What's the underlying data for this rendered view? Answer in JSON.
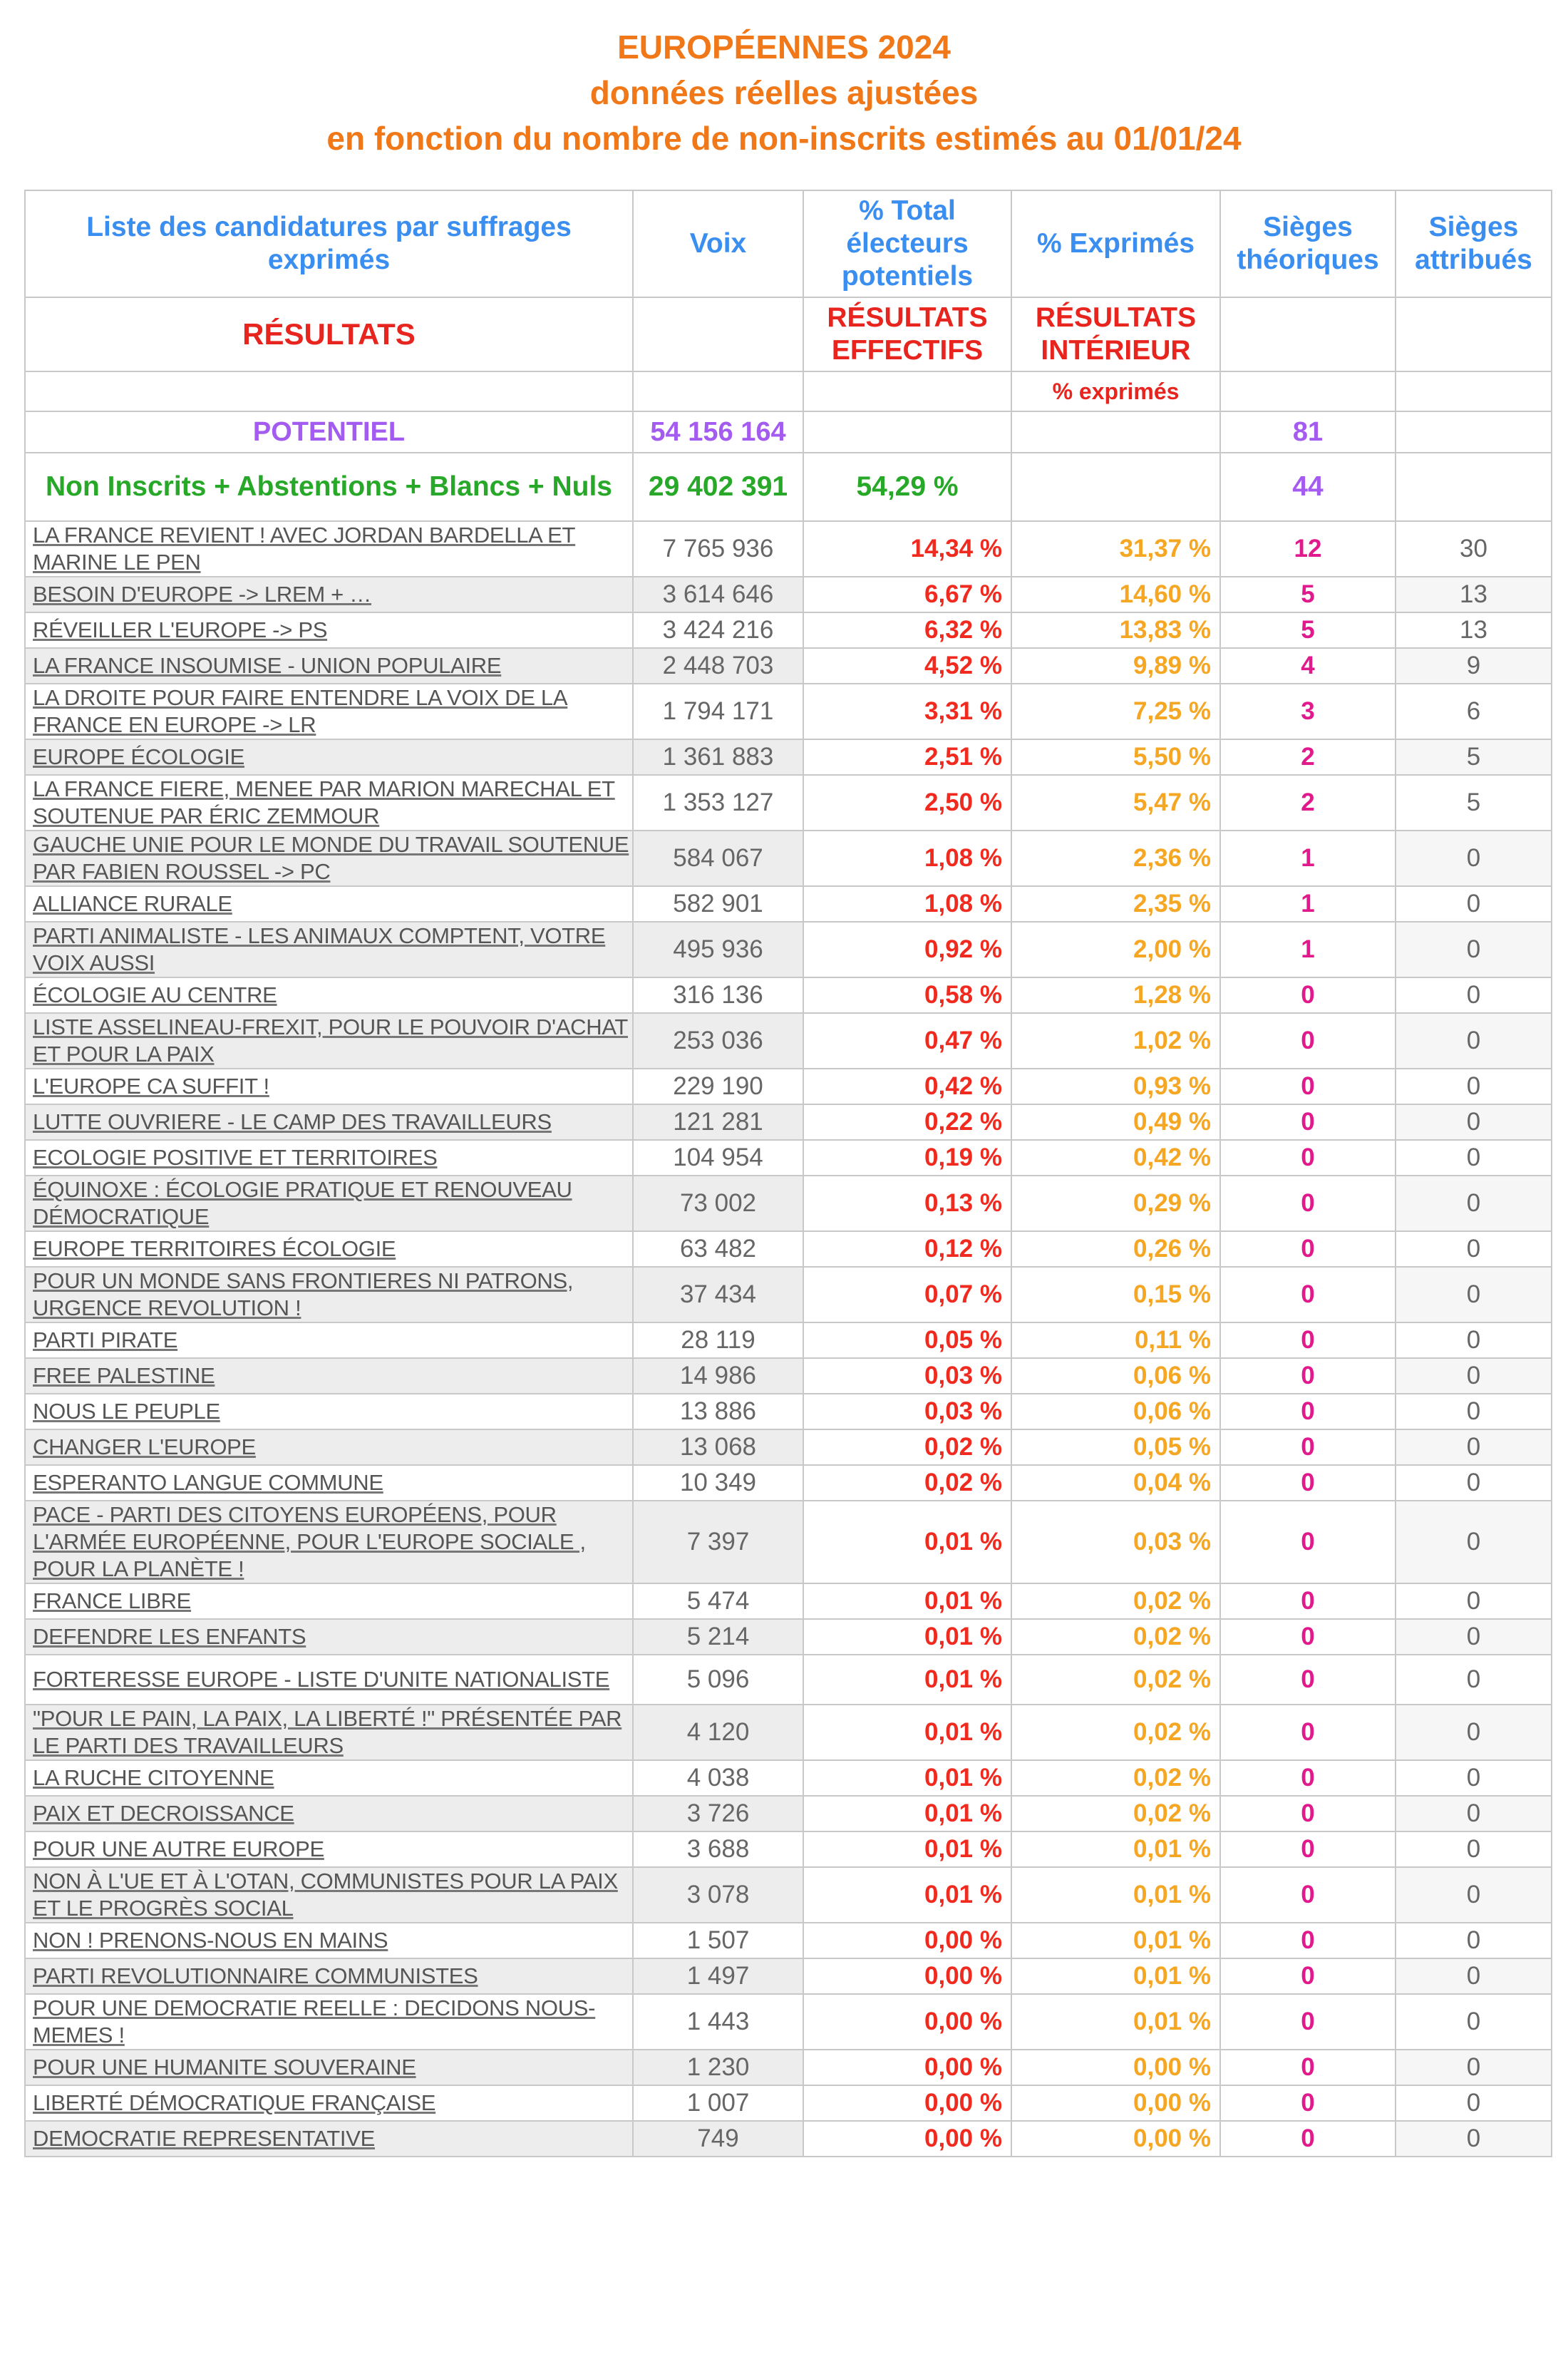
{
  "title": {
    "line1": "EUROPÉENNES 2024",
    "line2": "données réelles ajustées",
    "line3": "en fonction du nombre de non-inscrits estimés au 01/01/24"
  },
  "headers": {
    "liste": "Liste des candidatures par suffrages exprimés",
    "voix": "Voix",
    "total": "% Total électeurs potentiels",
    "exprimes": "% Exprimés",
    "sieges_theo": "Sièges théoriques",
    "sieges_attr": "Sièges attribués"
  },
  "sub": {
    "resultats": "RÉSULTATS",
    "effectifs": "RÉSULTATS EFFECTIFS",
    "interieur": "RÉSULTATS INTÉRIEUR",
    "pct_exprimes": "% exprimés"
  },
  "potentiel": {
    "label": "POTENTIEL",
    "voix": "54 156 164",
    "sieges": "81"
  },
  "non_inscrits": {
    "label": "Non Inscrits + Abstentions + Blancs + Nuls",
    "voix": "29 402 391",
    "pct": "54,29 %",
    "sieges": "44"
  },
  "colors": {
    "title": "#f07818",
    "header": "#3a8ef0",
    "red": "#e8241e",
    "purple": "#a45cf0",
    "green": "#28a828",
    "orange": "#f5a623",
    "magenta": "#e01a8c"
  },
  "rows": [
    {
      "name": "LA FRANCE REVIENT ! AVEC JORDAN BARDELLA ET MARINE LE PEN",
      "voix": "7 765 936",
      "pct": "14,34 %",
      "exp": "31,37 %",
      "st": "12",
      "sa": "30"
    },
    {
      "name": "BESOIN D'EUROPE -> LREM + …",
      "voix": "3 614 646",
      "pct": "6,67 %",
      "exp": "14,60 %",
      "st": "5",
      "sa": "13"
    },
    {
      "name": "RÉVEILLER L'EUROPE -> PS",
      "voix": "3 424 216",
      "pct": "6,32 %",
      "exp": "13,83 %",
      "st": "5",
      "sa": "13"
    },
    {
      "name": "LA FRANCE INSOUMISE - UNION POPULAIRE",
      "voix": "2 448 703",
      "pct": "4,52 %",
      "exp": "9,89 %",
      "st": "4",
      "sa": "9"
    },
    {
      "name": "LA DROITE POUR FAIRE ENTENDRE LA VOIX DE LA FRANCE EN EUROPE -> LR",
      "voix": "1 794 171",
      "pct": "3,31 %",
      "exp": "7,25 %",
      "st": "3",
      "sa": "6"
    },
    {
      "name": "EUROPE ÉCOLOGIE",
      "voix": "1 361 883",
      "pct": "2,51 %",
      "exp": "5,50 %",
      "st": "2",
      "sa": "5"
    },
    {
      "name": "LA FRANCE FIERE, MENEE PAR MARION MARECHAL ET SOUTENUE PAR ÉRIC ZEMMOUR",
      "voix": "1 353 127",
      "pct": "2,50 %",
      "exp": "5,47 %",
      "st": "2",
      "sa": "5"
    },
    {
      "name": "GAUCHE UNIE POUR LE MONDE DU TRAVAIL SOUTENUE PAR FABIEN ROUSSEL -> PC",
      "voix": "584 067",
      "pct": "1,08 %",
      "exp": "2,36 %",
      "st": "1",
      "sa": "0"
    },
    {
      "name": "ALLIANCE RURALE",
      "voix": "582 901",
      "pct": "1,08 %",
      "exp": "2,35 %",
      "st": "1",
      "sa": "0"
    },
    {
      "name": "PARTI ANIMALISTE - LES ANIMAUX COMPTENT, VOTRE VOIX AUSSI",
      "voix": "495 936",
      "pct": "0,92 %",
      "exp": "2,00 %",
      "st": "1",
      "sa": "0"
    },
    {
      "name": "ÉCOLOGIE AU CENTRE",
      "voix": "316 136",
      "pct": "0,58 %",
      "exp": "1,28 %",
      "st": "0",
      "sa": "0"
    },
    {
      "name": "LISTE ASSELINEAU-FREXIT, POUR LE POUVOIR D'ACHAT ET POUR LA PAIX",
      "voix": "253 036",
      "pct": "0,47 %",
      "exp": "1,02 %",
      "st": "0",
      "sa": "0"
    },
    {
      "name": "L'EUROPE CA SUFFIT !",
      "voix": "229 190",
      "pct": "0,42 %",
      "exp": "0,93 %",
      "st": "0",
      "sa": "0"
    },
    {
      "name": "LUTTE OUVRIERE - LE CAMP DES TRAVAILLEURS",
      "voix": "121 281",
      "pct": "0,22 %",
      "exp": "0,49 %",
      "st": "0",
      "sa": "0"
    },
    {
      "name": "ECOLOGIE POSITIVE ET TERRITOIRES",
      "voix": "104 954",
      "pct": "0,19 %",
      "exp": "0,42 %",
      "st": "0",
      "sa": "0"
    },
    {
      "name": "ÉQUINOXE : ÉCOLOGIE PRATIQUE ET RENOUVEAU DÉMOCRATIQUE",
      "voix": "73 002",
      "pct": "0,13 %",
      "exp": "0,29 %",
      "st": "0",
      "sa": "0"
    },
    {
      "name": "EUROPE TERRITOIRES ÉCOLOGIE",
      "voix": "63 482",
      "pct": "0,12 %",
      "exp": "0,26 %",
      "st": "0",
      "sa": "0"
    },
    {
      "name": "POUR UN MONDE SANS FRONTIERES NI PATRONS, URGENCE REVOLUTION !",
      "voix": "37 434",
      "pct": "0,07 %",
      "exp": "0,15 %",
      "st": "0",
      "sa": "0"
    },
    {
      "name": "PARTI PIRATE",
      "voix": "28 119",
      "pct": "0,05 %",
      "exp": "0,11 %",
      "st": "0",
      "sa": "0"
    },
    {
      "name": "FREE PALESTINE",
      "voix": "14 986",
      "pct": "0,03 %",
      "exp": "0,06 %",
      "st": "0",
      "sa": "0"
    },
    {
      "name": "NOUS LE PEUPLE",
      "voix": "13 886",
      "pct": "0,03 %",
      "exp": "0,06 %",
      "st": "0",
      "sa": "0"
    },
    {
      "name": "CHANGER L'EUROPE",
      "voix": "13 068",
      "pct": "0,02 %",
      "exp": "0,05 %",
      "st": "0",
      "sa": "0"
    },
    {
      "name": "ESPERANTO LANGUE COMMUNE",
      "voix": "10 349",
      "pct": "0,02 %",
      "exp": "0,04 %",
      "st": "0",
      "sa": "0"
    },
    {
      "name": "PACE - PARTI DES CITOYENS EUROPÉENS, POUR L'ARMÉE EUROPÉENNE, POUR L'EUROPE SOCIALE , POUR LA PLANÈTE !",
      "voix": "7 397",
      "pct": "0,01 %",
      "exp": "0,03 %",
      "st": "0",
      "sa": "0"
    },
    {
      "name": "FRANCE LIBRE",
      "voix": "5 474",
      "pct": "0,01 %",
      "exp": "0,02 %",
      "st": "0",
      "sa": "0"
    },
    {
      "name": "DEFENDRE LES ENFANTS",
      "voix": "5 214",
      "pct": "0,01 %",
      "exp": "0,02 %",
      "st": "0",
      "sa": "0"
    },
    {
      "name": "FORTERESSE EUROPE - LISTE D'UNITE NATIONALISTE",
      "voix": "5 096",
      "pct": "0,01 %",
      "exp": "0,02 %",
      "st": "0",
      "sa": "0"
    },
    {
      "name": "\"POUR LE PAIN, LA PAIX, LA LIBERTÉ !\" PRÉSENTÉE PAR LE PARTI DES TRAVAILLEURS",
      "voix": "4 120",
      "pct": "0,01 %",
      "exp": "0,02 %",
      "st": "0",
      "sa": "0"
    },
    {
      "name": "LA RUCHE CITOYENNE",
      "voix": "4 038",
      "pct": "0,01 %",
      "exp": "0,02 %",
      "st": "0",
      "sa": "0"
    },
    {
      "name": "PAIX ET DECROISSANCE",
      "voix": "3 726",
      "pct": "0,01 %",
      "exp": "0,02 %",
      "st": "0",
      "sa": "0"
    },
    {
      "name": "POUR UNE AUTRE EUROPE",
      "voix": "3 688",
      "pct": "0,01 %",
      "exp": "0,01 %",
      "st": "0",
      "sa": "0"
    },
    {
      "name": "NON À L'UE ET À L'OTAN, COMMUNISTES POUR LA PAIX ET LE PROGRÈS SOCIAL",
      "voix": "3 078",
      "pct": "0,01 %",
      "exp": "0,01 %",
      "st": "0",
      "sa": "0"
    },
    {
      "name": "NON ! PRENONS-NOUS EN MAINS",
      "voix": "1 507",
      "pct": "0,00 %",
      "exp": "0,01 %",
      "st": "0",
      "sa": "0"
    },
    {
      "name": "PARTI REVOLUTIONNAIRE COMMUNISTES",
      "voix": "1 497",
      "pct": "0,00 %",
      "exp": "0,01 %",
      "st": "0",
      "sa": "0"
    },
    {
      "name": "POUR UNE DEMOCRATIE REELLE : DECIDONS NOUS-MEMES !",
      "voix": "1 443",
      "pct": "0,00 %",
      "exp": "0,01 %",
      "st": "0",
      "sa": "0"
    },
    {
      "name": "POUR UNE HUMANITE SOUVERAINE",
      "voix": "1 230",
      "pct": "0,00 %",
      "exp": "0,00 %",
      "st": "0",
      "sa": "0"
    },
    {
      "name": "LIBERTÉ DÉMOCRATIQUE FRANÇAISE",
      "voix": "1 007",
      "pct": "0,00 %",
      "exp": "0,00 %",
      "st": "0",
      "sa": "0"
    },
    {
      "name": "DEMOCRATIE REPRESENTATIVE",
      "voix": "749",
      "pct": "0,00 %",
      "exp": "0,00 %",
      "st": "0",
      "sa": "0"
    }
  ]
}
